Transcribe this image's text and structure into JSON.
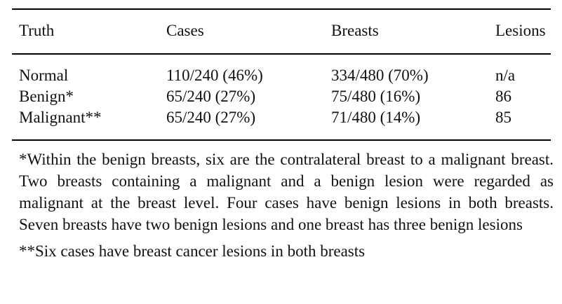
{
  "table": {
    "headers": {
      "truth": "Truth",
      "cases": "Cases",
      "breasts": "Breasts",
      "lesions": "Lesions"
    },
    "rows": [
      {
        "truth": "Normal",
        "cases": "110/240 (46%)",
        "breasts": "334/480 (70%)",
        "lesions": "n/a"
      },
      {
        "truth": "Benign*",
        "cases": "65/240 (27%)",
        "breasts": "75/480 (16%)",
        "lesions": "86"
      },
      {
        "truth": "Malignant**",
        "cases": "65/240 (27%)",
        "breasts": "71/480 (14%)",
        "lesions": "85"
      }
    ]
  },
  "footnotes": {
    "benign": "*Within the benign breasts, six are the contralateral breast to a malignant breast. Two breasts containing a malignant and a benign lesion were regarded as malignant at the breast level. Four cases have benign lesions in both breasts. Seven breasts have two benign lesions and one breast has three benign lesions",
    "malignant": "**Six cases have breast cancer lesions in both breasts"
  }
}
